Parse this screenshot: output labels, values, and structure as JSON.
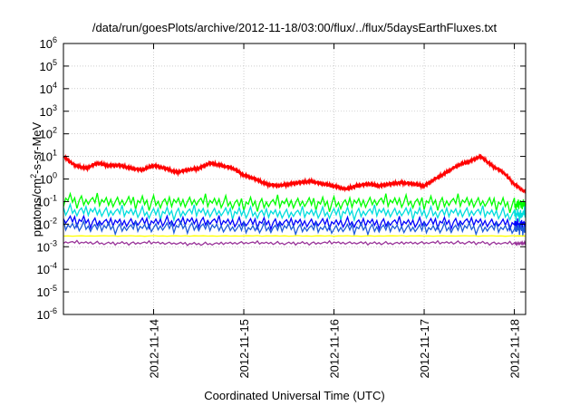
{
  "chart_data": {
    "type": "line",
    "title": "/data/run/goesPlots/archive/2012-11-18/03:00/flux/../flux/5daysEarthFluxes.txt",
    "xlabel": "Coordinated Universal Time (UTC)",
    "ylabel": "protons/cm²-s-sr-MeV",
    "ylabel_parts": {
      "pre": "protons/cm",
      "sup": "2",
      "post": "-s-sr-MeV"
    },
    "yscale": "log",
    "ylim": [
      1e-06,
      1000000.0
    ],
    "y_ticks": [
      {
        "value": 1e-06,
        "base": "10",
        "exp": "-6"
      },
      {
        "value": 1e-05,
        "base": "10",
        "exp": "-5"
      },
      {
        "value": 0.0001,
        "base": "10",
        "exp": "-4"
      },
      {
        "value": 0.001,
        "base": "10",
        "exp": "-3"
      },
      {
        "value": 0.01,
        "base": "10",
        "exp": "-2"
      },
      {
        "value": 0.1,
        "base": "10",
        "exp": "-1"
      },
      {
        "value": 1.0,
        "base": "10",
        "exp": "0"
      },
      {
        "value": 10.0,
        "base": "10",
        "exp": "1"
      },
      {
        "value": 100.0,
        "base": "10",
        "exp": "2"
      },
      {
        "value": 1000.0,
        "base": "10",
        "exp": "3"
      },
      {
        "value": 10000.0,
        "base": "10",
        "exp": "4"
      },
      {
        "value": 100000.0,
        "base": "10",
        "exp": "5"
      },
      {
        "value": 1000000.0,
        "base": "10",
        "exp": "6"
      }
    ],
    "xlim": [
      "2012-11-13 00:00",
      "2012-11-18 03:00"
    ],
    "x_ticks": [
      {
        "value": "2012-11-14 00:00",
        "label": "2012-11-14"
      },
      {
        "value": "2012-11-15 00:00",
        "label": "2012-11-15"
      },
      {
        "value": "2012-11-16 00:00",
        "label": "2012-11-16"
      },
      {
        "value": "2012-11-17 00:00",
        "label": "2012-11-17"
      },
      {
        "value": "2012-11-18 00:00",
        "label": "2012-11-18"
      }
    ],
    "grid": true,
    "legend": "none",
    "series": [
      {
        "color": "#ff0000",
        "x": [
          "2012-11-13 00:00",
          "2012-11-13 03:00",
          "2012-11-13 06:00",
          "2012-11-13 09:00",
          "2012-11-13 12:00",
          "2012-11-13 15:00",
          "2012-11-13 18:00",
          "2012-11-13 21:00",
          "2012-11-14 00:00",
          "2012-11-14 03:00",
          "2012-11-14 06:00",
          "2012-11-14 09:00",
          "2012-11-14 12:00",
          "2012-11-14 15:00",
          "2012-11-14 18:00",
          "2012-11-14 21:00",
          "2012-11-15 00:00",
          "2012-11-15 03:00",
          "2012-11-15 06:00",
          "2012-11-15 09:00",
          "2012-11-15 12:00",
          "2012-11-15 15:00",
          "2012-11-15 18:00",
          "2012-11-15 21:00",
          "2012-11-16 00:00",
          "2012-11-16 03:00",
          "2012-11-16 06:00",
          "2012-11-16 09:00",
          "2012-11-16 12:00",
          "2012-11-16 15:00",
          "2012-11-16 18:00",
          "2012-11-16 21:00",
          "2012-11-17 00:00",
          "2012-11-17 03:00",
          "2012-11-17 06:00",
          "2012-11-17 09:00",
          "2012-11-17 12:00",
          "2012-11-17 15:00",
          "2012-11-17 18:00",
          "2012-11-17 21:00",
          "2012-11-18 00:00",
          "2012-11-18 03:00"
        ],
        "values": [
          10,
          4,
          3,
          5,
          4,
          4,
          3,
          2.5,
          4,
          3,
          2,
          2.5,
          3,
          5,
          4,
          3,
          1.5,
          1,
          0.6,
          0.5,
          0.6,
          0.7,
          0.8,
          0.6,
          0.5,
          0.35,
          0.5,
          0.6,
          0.5,
          0.6,
          0.7,
          0.6,
          0.5,
          1,
          2,
          4,
          6,
          10,
          4,
          2,
          0.6,
          0.25
        ]
      },
      {
        "color": "#00ff00",
        "x": [
          "2012-11-13 00:00",
          "2012-11-13 12:00",
          "2012-11-14 00:00",
          "2012-11-14 12:00",
          "2012-11-15 00:00",
          "2012-11-15 12:00",
          "2012-11-16 00:00",
          "2012-11-16 12:00",
          "2012-11-17 00:00",
          "2012-11-17 12:00",
          "2012-11-18 00:00",
          "2012-11-18 03:00"
        ],
        "values": [
          0.12,
          0.1,
          0.09,
          0.1,
          0.08,
          0.09,
          0.08,
          0.1,
          0.09,
          0.1,
          0.07,
          0.08
        ]
      },
      {
        "color": "#00dddd",
        "x": [
          "2012-11-13 00:00",
          "2012-11-13 12:00",
          "2012-11-14 00:00",
          "2012-11-14 12:00",
          "2012-11-15 00:00",
          "2012-11-15 12:00",
          "2012-11-16 00:00",
          "2012-11-16 12:00",
          "2012-11-17 00:00",
          "2012-11-17 12:00",
          "2012-11-18 00:00",
          "2012-11-18 03:00"
        ],
        "values": [
          0.04,
          0.035,
          0.03,
          0.035,
          0.03,
          0.03,
          0.03,
          0.035,
          0.03,
          0.035,
          0.025,
          0.03
        ]
      },
      {
        "color": "#0000ff",
        "x": [
          "2012-11-13 00:00",
          "2012-11-13 12:00",
          "2012-11-14 00:00",
          "2012-11-14 12:00",
          "2012-11-15 00:00",
          "2012-11-15 12:00",
          "2012-11-16 00:00",
          "2012-11-16 12:00",
          "2012-11-17 00:00",
          "2012-11-17 12:00",
          "2012-11-18 00:00",
          "2012-11-18 03:00"
        ],
        "values": [
          0.015,
          0.012,
          0.012,
          0.014,
          0.011,
          0.012,
          0.011,
          0.012,
          0.011,
          0.013,
          0.01,
          0.01
        ]
      },
      {
        "color": "#1e5bd8",
        "x": [
          "2012-11-13 00:00",
          "2012-11-13 12:00",
          "2012-11-14 00:00",
          "2012-11-14 12:00",
          "2012-11-15 00:00",
          "2012-11-15 12:00",
          "2012-11-16 00:00",
          "2012-11-16 12:00",
          "2012-11-17 00:00",
          "2012-11-17 12:00",
          "2012-11-18 00:00",
          "2012-11-18 03:00"
        ],
        "values": [
          0.008,
          0.007,
          0.007,
          0.008,
          0.006,
          0.007,
          0.006,
          0.007,
          0.006,
          0.007,
          0.006,
          0.006
        ]
      },
      {
        "color": "#ffff00",
        "x": [
          "2012-11-13 00:00",
          "2012-11-14 00:00",
          "2012-11-15 00:00",
          "2012-11-16 00:00",
          "2012-11-17 00:00",
          "2012-11-18 00:00",
          "2012-11-18 03:00"
        ],
        "values": [
          0.003,
          0.003,
          0.003,
          0.003,
          0.003,
          0.003,
          0.003
        ]
      },
      {
        "color": "#993399",
        "x": [
          "2012-11-13 00:00",
          "2012-11-13 12:00",
          "2012-11-14 00:00",
          "2012-11-14 12:00",
          "2012-11-15 00:00",
          "2012-11-15 12:00",
          "2012-11-16 00:00",
          "2012-11-16 12:00",
          "2012-11-17 00:00",
          "2012-11-17 12:00",
          "2012-11-18 00:00",
          "2012-11-18 03:00"
        ],
        "values": [
          0.0016,
          0.0014,
          0.0015,
          0.0013,
          0.0015,
          0.0014,
          0.0015,
          0.0014,
          0.0015,
          0.0015,
          0.0014,
          0.0014
        ]
      }
    ]
  }
}
